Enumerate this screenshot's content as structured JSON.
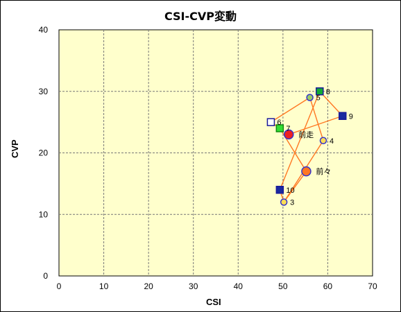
{
  "chart_data": {
    "type": "scatter",
    "title": "CSI-CVP変動",
    "xlabel": "CSI",
    "ylabel": "CVP",
    "xlim": [
      0,
      70
    ],
    "ylim": [
      0,
      40
    ],
    "xticks": [
      "0",
      "10",
      "20",
      "30",
      "40",
      "50",
      "60",
      "70"
    ],
    "yticks": [
      "0",
      "10",
      "20",
      "30",
      "40"
    ],
    "grid": true,
    "plot_bg": "#ffffcc",
    "line_color": "#ff7722",
    "path_order": [
      "3",
      "4",
      "5",
      "6",
      "7",
      "前々",
      "3",
      "10",
      "8",
      "9",
      "前走"
    ],
    "points": [
      {
        "id": "3",
        "label": "3",
        "x": 50.2,
        "y": 12.0,
        "marker": "circle",
        "fill": "#ffdd55",
        "stroke": "#3333cc",
        "size": "small"
      },
      {
        "id": "4",
        "label": "4",
        "x": 59.0,
        "y": 22.0,
        "marker": "circle",
        "fill": "#ffdd55",
        "stroke": "#3333cc",
        "size": "small"
      },
      {
        "id": "5",
        "label": "5",
        "x": 56.0,
        "y": 29.0,
        "marker": "circle",
        "fill": "#99cc66",
        "stroke": "#3333cc",
        "size": "small"
      },
      {
        "id": "6",
        "label": "6",
        "x": 47.3,
        "y": 25.0,
        "marker": "square",
        "fill": "#ffffff",
        "stroke": "#1a1a99",
        "size": "small"
      },
      {
        "id": "7",
        "label": "7",
        "x": 49.3,
        "y": 24.0,
        "marker": "square",
        "fill": "#33dd33",
        "stroke": "#118811",
        "size": "small"
      },
      {
        "id": "8",
        "label": "8",
        "x": 58.2,
        "y": 30.0,
        "marker": "square",
        "fill": "#11aa33",
        "stroke": "#1a1a99",
        "size": "small"
      },
      {
        "id": "9",
        "label": "9",
        "x": 63.3,
        "y": 26.0,
        "marker": "square",
        "fill": "#1a2aa0",
        "stroke": "#1a1a99",
        "size": "small"
      },
      {
        "id": "10",
        "label": "10",
        "x": 49.3,
        "y": 14.0,
        "marker": "square",
        "fill": "#1a2aa0",
        "stroke": "#1a1a99",
        "size": "small"
      },
      {
        "id": "前々",
        "label": "前々",
        "x": 55.2,
        "y": 17.0,
        "marker": "circle",
        "fill": "#ff7722",
        "stroke": "#3333cc",
        "size": "large"
      },
      {
        "id": "前走",
        "label": "前走",
        "x": 51.3,
        "y": 23.0,
        "marker": "circle",
        "fill": "#ee2222",
        "stroke": "#3333cc",
        "size": "large"
      }
    ]
  }
}
